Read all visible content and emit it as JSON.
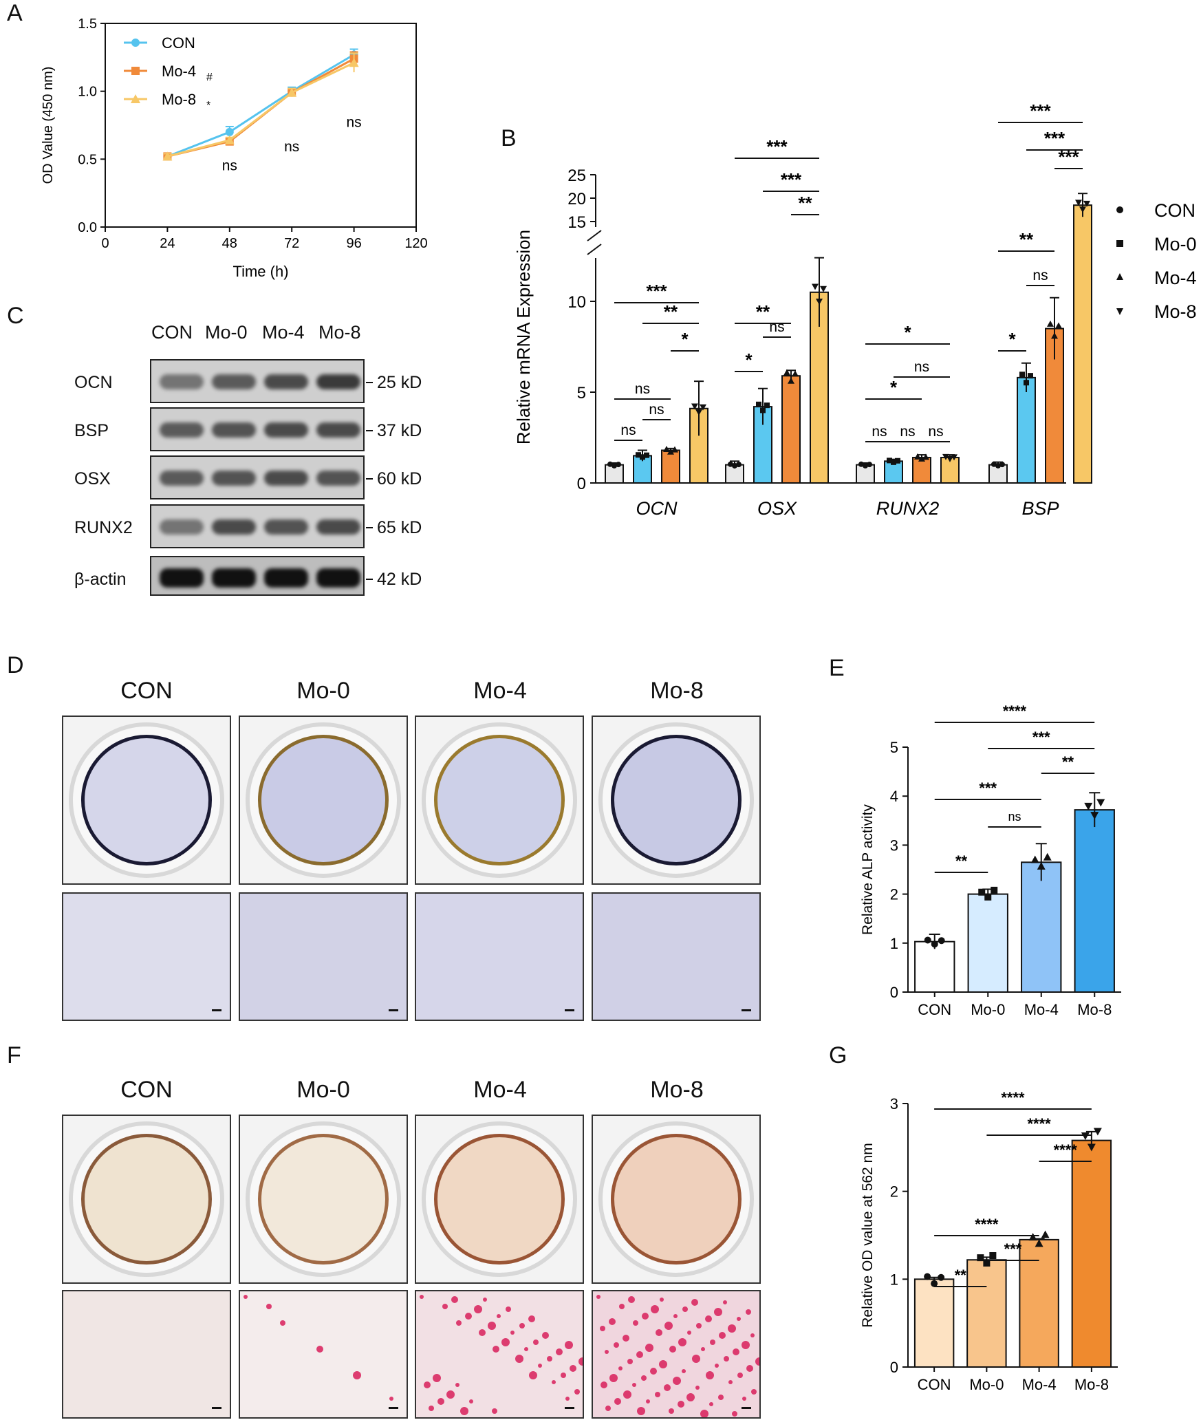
{
  "panels": {
    "A": "A",
    "B": "B",
    "C": "C",
    "D": "D",
    "E": "E",
    "F": "F",
    "G": "G"
  },
  "groups": [
    "CON",
    "Mo-0",
    "Mo-4",
    "Mo-8"
  ],
  "colors": {
    "CON": "#e8e8e8",
    "Mo0": "#5bc8f0",
    "Mo4": "#f08a3a",
    "Mo8": "#f7c766",
    "lineCON": "#55c3ee",
    "lineMo4": "#f08a3a",
    "lineMo8": "#f7c766",
    "E_CON": "#ffffff",
    "E_Mo0": "#d6ecff",
    "E_Mo4": "#8fc3f7",
    "E_Mo8": "#3aa4ea",
    "G_CON": "#fde2c2",
    "G_Mo0": "#f8c58c",
    "G_Mo4": "#f5a85c",
    "G_Mo8": "#ef8a2e"
  },
  "western": {
    "proteins": [
      "OCN",
      "BSP",
      "OSX",
      "RUNX2",
      "β-actin"
    ],
    "sizes": [
      "25 kD",
      "37 kD",
      "60 kD",
      "65 kD",
      "42 kD"
    ]
  },
  "chart_data": [
    {
      "id": "A",
      "type": "line",
      "xlabel": "Time (h)",
      "ylabel": "OD Value (450 nm)",
      "xlim": [
        0,
        120
      ],
      "ylim": [
        0,
        1.5
      ],
      "xticks": [
        "0",
        "24",
        "48",
        "72",
        "96",
        "120"
      ],
      "yticks": [
        "0.0",
        "0.5",
        "1.0",
        "1.5"
      ],
      "x": [
        24,
        48,
        72,
        96
      ],
      "series": [
        {
          "name": "CON",
          "marker": "",
          "values": [
            0.52,
            0.7,
            1.0,
            1.27
          ],
          "err": [
            0.02,
            0.04,
            0.03,
            0.04
          ]
        },
        {
          "name": "Mo-4",
          "marker": "#",
          "values": [
            0.52,
            0.63,
            0.99,
            1.24
          ],
          "err": [
            0.02,
            0.02,
            0.03,
            0.05
          ]
        },
        {
          "name": "Mo-8",
          "marker": "*",
          "values": [
            0.52,
            0.64,
            0.99,
            1.21
          ],
          "err": [
            0.02,
            0.02,
            0.03,
            0.07
          ]
        }
      ],
      "annotations": [
        "ns",
        "ns",
        "ns"
      ]
    },
    {
      "id": "B",
      "type": "bar",
      "ylabel": "Relative mRNA Expression",
      "yticks_low": [
        "0",
        "5",
        "10"
      ],
      "yticks_high": [
        "15",
        "20",
        "25"
      ],
      "categories": [
        "OCN",
        "OSX",
        "RUNX2",
        "BSP"
      ],
      "legend": [
        "CON",
        "Mo-0",
        "Mo-4",
        "Mo-8"
      ],
      "series": [
        {
          "name": "CON",
          "values": [
            1.0,
            1.0,
            1.0,
            1.0
          ],
          "err": [
            0.1,
            0.2,
            0.1,
            0.15
          ]
        },
        {
          "name": "Mo-0",
          "values": [
            1.5,
            4.2,
            1.2,
            5.8
          ],
          "err": [
            0.3,
            1.0,
            0.1,
            0.8
          ]
        },
        {
          "name": "Mo-4",
          "values": [
            1.8,
            5.9,
            1.4,
            8.5
          ],
          "err": [
            0.1,
            0.3,
            0.15,
            1.7
          ]
        },
        {
          "name": "Mo-8",
          "values": [
            4.1,
            10.5,
            1.4,
            18.5
          ],
          "err": [
            1.5,
            1.9,
            0.15,
            2.5
          ]
        }
      ],
      "sig": {
        "OCN": [
          "***",
          "**",
          "*",
          "ns",
          "ns",
          "ns"
        ],
        "OSX": [
          "***",
          "***",
          "**",
          "**",
          "ns",
          "*"
        ],
        "RUNX2": [
          "*",
          "ns",
          "*",
          "ns",
          "ns",
          "ns"
        ],
        "BSP": [
          "***",
          "***",
          "***",
          "**",
          "ns",
          "*"
        ]
      }
    },
    {
      "id": "E",
      "type": "bar",
      "ylabel": "Relative ALP activity",
      "categories": [
        "CON",
        "Mo-0",
        "Mo-4",
        "Mo-8"
      ],
      "ylim": [
        0,
        5
      ],
      "yticks": [
        "0",
        "1",
        "2",
        "3",
        "4",
        "5"
      ],
      "values": [
        1.03,
        2.0,
        2.65,
        3.72
      ],
      "err": [
        0.15,
        0.1,
        0.38,
        0.35
      ],
      "sig": [
        "****",
        "***",
        "**",
        "***",
        "ns",
        "**"
      ]
    },
    {
      "id": "G",
      "type": "bar",
      "ylabel": "Relative OD value at 562 nm",
      "categories": [
        "CON",
        "Mo-0",
        "Mo-4",
        "Mo-8"
      ],
      "ylim": [
        0,
        3
      ],
      "yticks": [
        "0",
        "1",
        "2",
        "3"
      ],
      "values": [
        1.0,
        1.22,
        1.45,
        2.58
      ],
      "err": [
        0.02,
        0.03,
        0.01,
        0.1
      ],
      "sig": [
        "****",
        "****",
        "****",
        "****",
        "***",
        "**"
      ]
    }
  ]
}
